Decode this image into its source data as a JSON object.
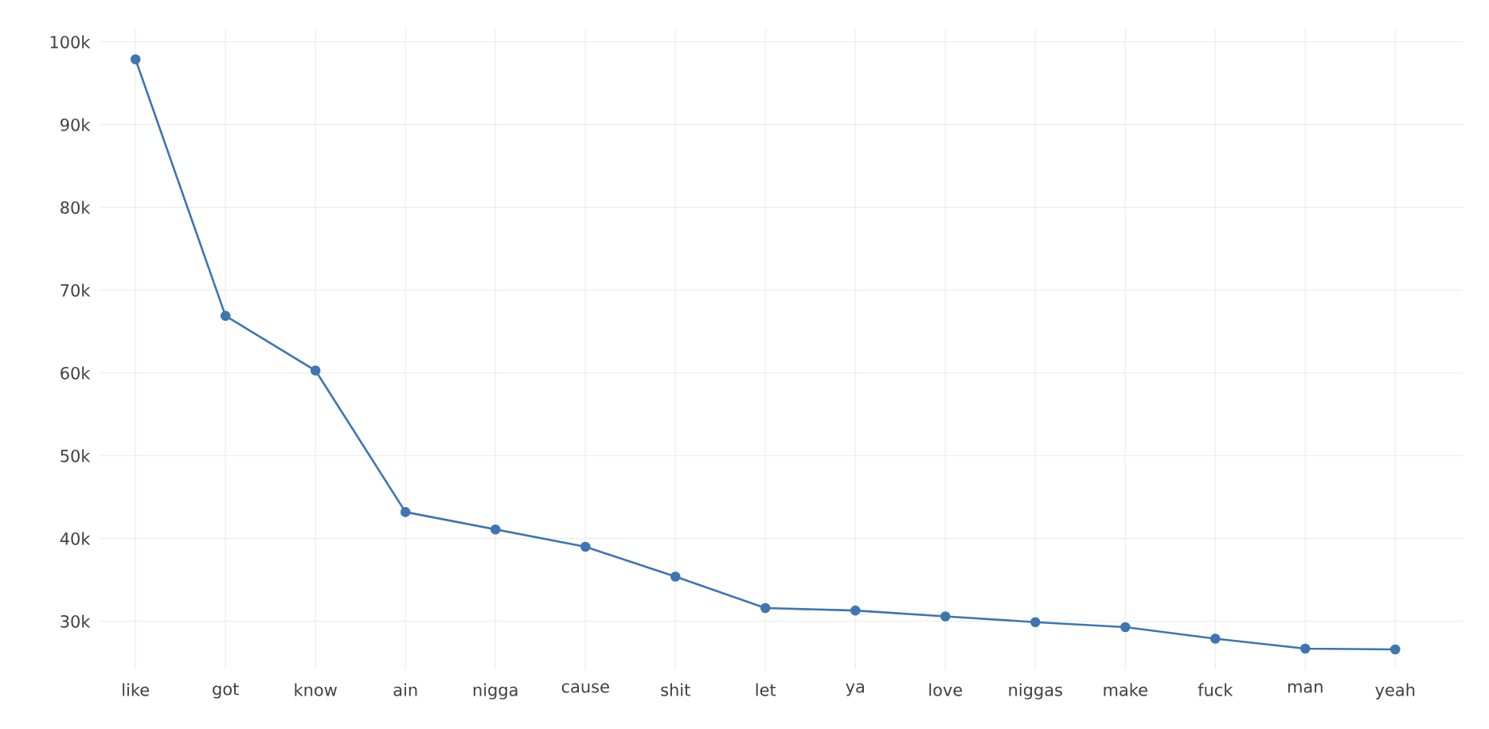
{
  "chart_data": {
    "type": "line",
    "categories": [
      "like",
      "got",
      "know",
      "ain",
      "nigga",
      "cause",
      "shit",
      "let",
      "ya",
      "love",
      "niggas",
      "make",
      "fuck",
      "man",
      "yeah"
    ],
    "values": [
      97900,
      66900,
      60300,
      43200,
      41100,
      39000,
      35400,
      31600,
      31300,
      30600,
      29900,
      29300,
      27900,
      26700,
      26600
    ],
    "color": "#3d76b0",
    "marker": "circle",
    "line_style": "solid",
    "grid": true,
    "ylim": [
      24200,
      101600
    ],
    "yticks": [
      {
        "value": 30000,
        "label": "30k"
      },
      {
        "value": 40000,
        "label": "40k"
      },
      {
        "value": 50000,
        "label": "50k"
      },
      {
        "value": 60000,
        "label": "60k"
      },
      {
        "value": 70000,
        "label": "70k"
      },
      {
        "value": 80000,
        "label": "80k"
      },
      {
        "value": 90000,
        "label": "90k"
      },
      {
        "value": 100000,
        "label": "100k"
      }
    ]
  }
}
